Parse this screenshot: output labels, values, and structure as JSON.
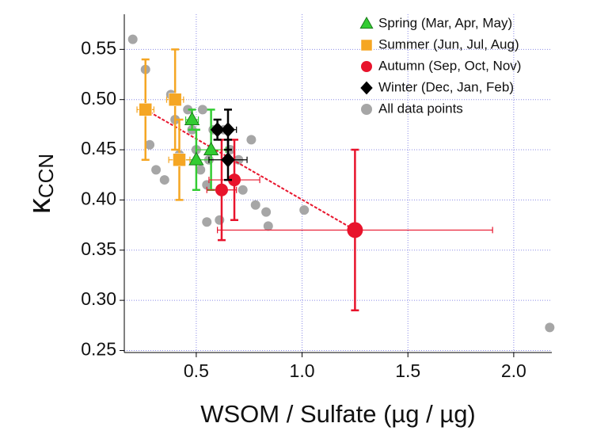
{
  "chart_data": {
    "type": "scatter",
    "x_label": "WSOM / Sulfate (µg / µg)",
    "y_label": {
      "main": "κ",
      "sub": "CCN"
    },
    "xlim": [
      0.16,
      2.18
    ],
    "ylim": [
      0.248,
      0.585
    ],
    "xticks": [
      0.5,
      {
        "value": 1.0,
        "label": "1.0"
      },
      1.5,
      {
        "value": 2.0,
        "label": "2.0"
      }
    ],
    "yticks": [
      0.25,
      {
        "value": 0.3,
        "label": "0.30"
      },
      0.35,
      {
        "value": 0.4,
        "label": "0.40"
      },
      0.45,
      {
        "value": 0.5,
        "label": "0.50"
      },
      0.55
    ],
    "grid": true,
    "legend": "upper right",
    "series": [
      {
        "name": "All data points",
        "color": "#a6a6a6",
        "marker": "circle",
        "x": [
          0.2,
          0.26,
          0.28,
          0.31,
          0.35,
          0.38,
          0.4,
          0.42,
          0.46,
          0.48,
          0.5,
          0.52,
          0.53,
          0.55,
          0.56,
          0.58,
          0.61,
          0.63,
          0.55,
          0.66,
          0.7,
          0.72,
          0.76,
          0.78,
          0.83,
          0.84,
          1.01,
          2.17
        ],
        "y": [
          0.56,
          0.53,
          0.455,
          0.43,
          0.42,
          0.505,
          0.48,
          0.445,
          0.49,
          0.47,
          0.45,
          0.43,
          0.49,
          0.415,
          0.44,
          0.47,
          0.38,
          0.47,
          0.378,
          0.45,
          0.44,
          0.41,
          0.46,
          0.395,
          0.388,
          0.374,
          0.39,
          0.273
        ]
      },
      {
        "name": "Spring (Mar, Apr, May)",
        "color": "#33cc33",
        "marker": "triangle",
        "x": [
          0.48,
          0.5,
          0.57
        ],
        "y": [
          0.48,
          0.44,
          0.45
        ],
        "xerr": [
          0.03,
          0.06,
          0.07
        ],
        "yerr": [
          0.01,
          0.03,
          0.04
        ]
      },
      {
        "name": "Summer (Jun, Jul, Aug)",
        "color": "#f5a623",
        "marker": "square",
        "x": [
          0.26,
          0.4,
          0.42
        ],
        "y": [
          0.49,
          0.5,
          0.44
        ],
        "xerr": [
          0.04,
          0.04,
          0.05
        ],
        "yerr": [
          0.05,
          0.05,
          0.04
        ]
      },
      {
        "name": "Autumn (Sep, Oct, Nov)",
        "color": "#e8142c",
        "marker": "circle",
        "x": [
          0.62,
          0.68,
          1.25
        ],
        "y": [
          0.41,
          0.42,
          0.37
        ],
        "xerr": [
          0.07,
          0.12,
          0.65
        ],
        "yerr": [
          0.05,
          0.04,
          0.08
        ]
      },
      {
        "name": "Winter (Dec, Jan, Feb)",
        "color": "#000000",
        "marker": "diamond",
        "x": [
          0.6,
          0.65,
          0.65
        ],
        "y": [
          0.47,
          0.47,
          0.44
        ],
        "xerr": [
          0.02,
          0.04,
          0.09
        ],
        "yerr": [
          0.01,
          0.02,
          0.02
        ]
      }
    ],
    "legend_order": [
      1,
      2,
      3,
      4,
      0
    ],
    "fit_line": {
      "color": "#e8142c",
      "x": [
        0.26,
        1.25
      ],
      "y": [
        0.49,
        0.37
      ]
    }
  }
}
